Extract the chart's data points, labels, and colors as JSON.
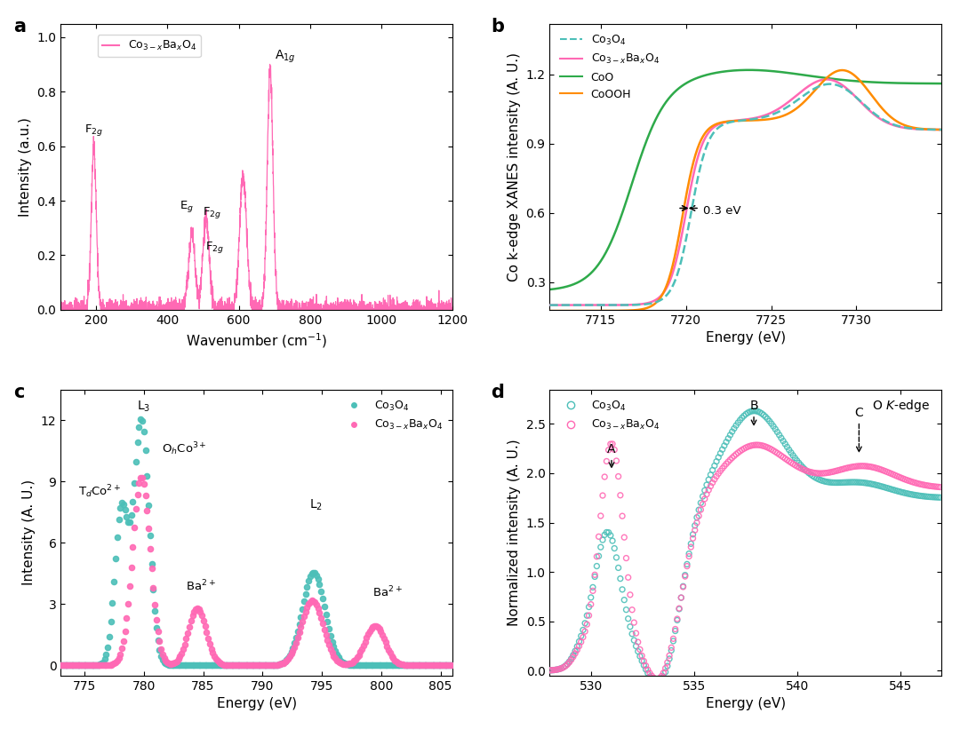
{
  "panel_a": {
    "label": "a",
    "xlabel": "Wavenumber (cm$^{-1}$)",
    "ylabel": "Intensity (a.u.)",
    "xlim": [
      100,
      1200
    ],
    "ylim": [
      0.0,
      1.05
    ],
    "xticks": [
      200,
      400,
      600,
      800,
      1000,
      1200
    ],
    "legend_label": "Co$_{3-x}$Ba$_x$O$_4$"
  },
  "panel_b": {
    "label": "b",
    "xlabel": "Energy (eV)",
    "ylabel": "Co k-edge XANES intensity (A. U.)",
    "xlim": [
      7712,
      7735
    ],
    "ylim": [
      0.18,
      1.42
    ],
    "yticks": [
      0.3,
      0.6,
      0.9,
      1.2
    ],
    "xticks": [
      7715,
      7720,
      7725,
      7730
    ]
  },
  "panel_c": {
    "label": "c",
    "xlabel": "Energy (eV)",
    "ylabel": "Intensity (A. U.)",
    "xlim": [
      773,
      806
    ],
    "ylim": [
      -0.5,
      13.5
    ],
    "yticks": [
      0,
      3,
      6,
      9,
      12
    ],
    "xticks": [
      775,
      780,
      785,
      790,
      795,
      800,
      805
    ]
  },
  "panel_d": {
    "label": "d",
    "xlabel": "Energy (eV)",
    "ylabel": "Normalized intensity (A. U.)",
    "xlim": [
      528,
      547
    ],
    "ylim": [
      -0.05,
      2.85
    ],
    "yticks": [
      0.0,
      0.5,
      1.0,
      1.5,
      2.0,
      2.5
    ],
    "xticks": [
      530,
      535,
      540,
      545
    ]
  },
  "colors": {
    "pink": "#FF69B4",
    "green": "#2EAA4A",
    "orange": "#FF8C00",
    "teal": "#4CBFB8"
  }
}
